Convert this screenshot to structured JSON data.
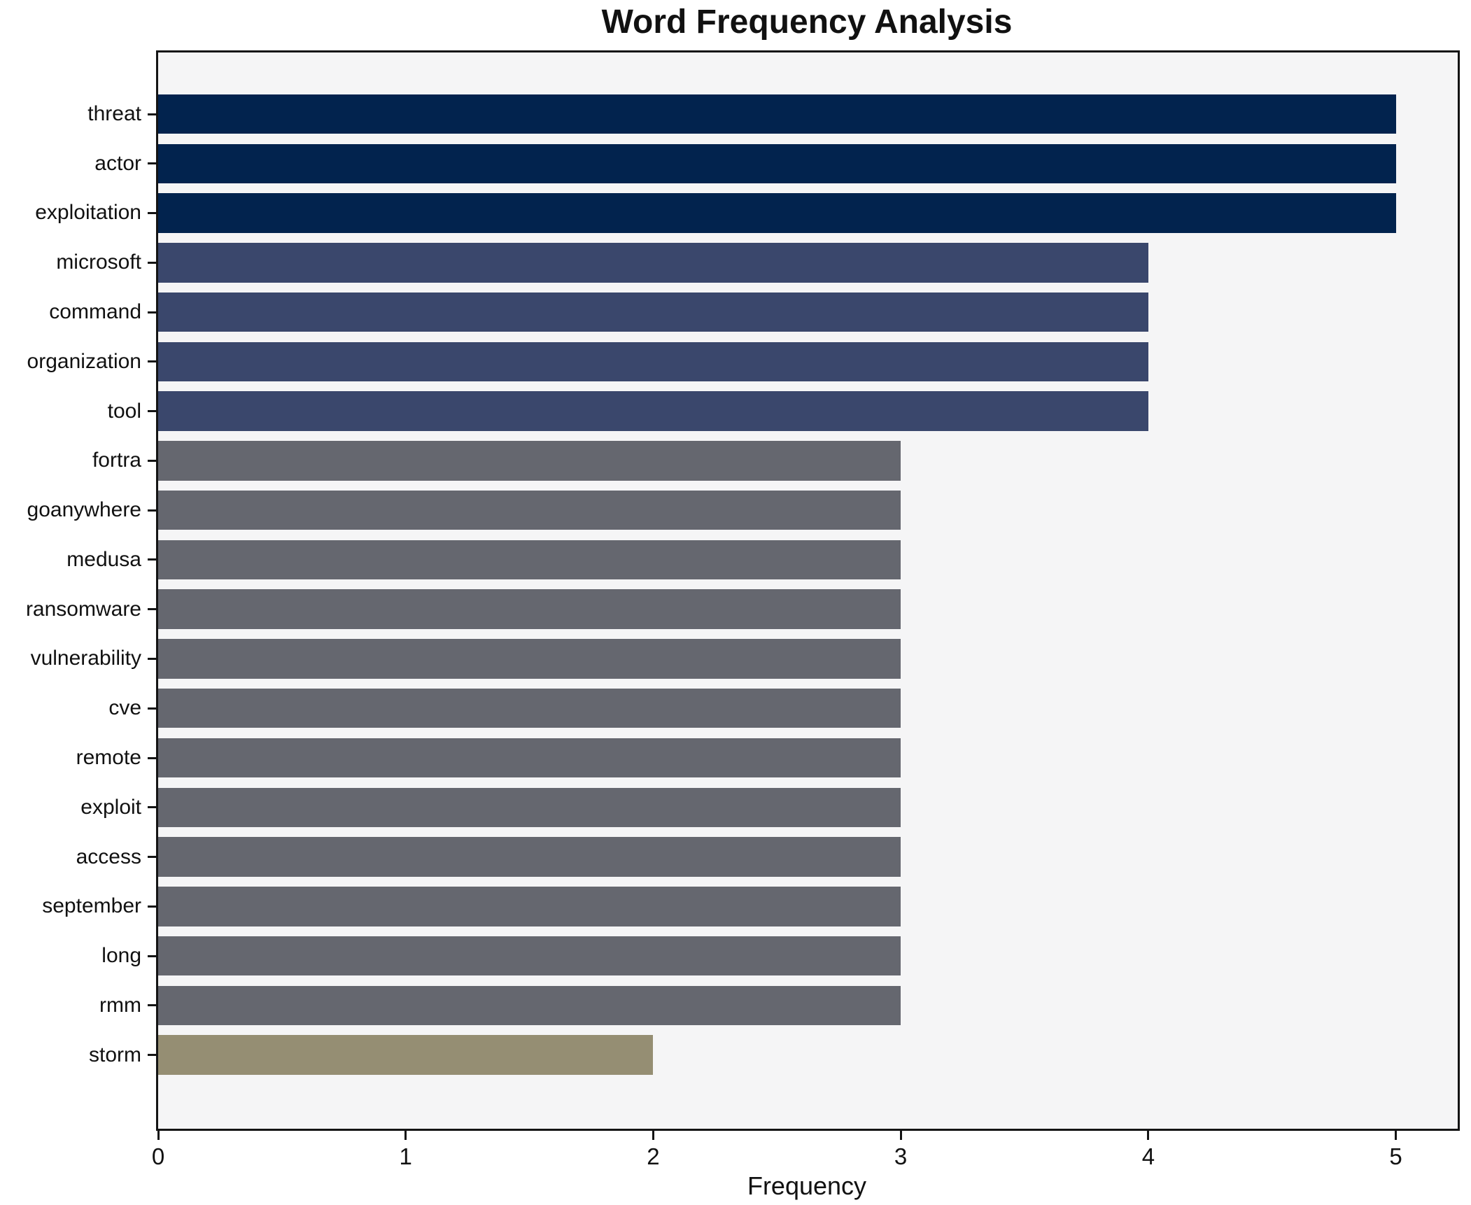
{
  "chart_data": {
    "type": "bar",
    "orientation": "horizontal",
    "title": "Word Frequency Analysis",
    "xlabel": "Frequency",
    "ylabel": "",
    "categories": [
      "threat",
      "actor",
      "exploitation",
      "microsoft",
      "command",
      "organization",
      "tool",
      "fortra",
      "goanywhere",
      "medusa",
      "ransomware",
      "vulnerability",
      "cve",
      "remote",
      "exploit",
      "access",
      "september",
      "long",
      "rmm",
      "storm"
    ],
    "values": [
      5,
      5,
      5,
      4,
      4,
      4,
      4,
      3,
      3,
      3,
      3,
      3,
      3,
      3,
      3,
      3,
      3,
      3,
      3,
      2
    ],
    "bar_colors": [
      "#02234e",
      "#02234e",
      "#02234e",
      "#3a476c",
      "#3a476c",
      "#3a476c",
      "#3a476c",
      "#65676f",
      "#65676f",
      "#65676f",
      "#65676f",
      "#65676f",
      "#65676f",
      "#65676f",
      "#65676f",
      "#65676f",
      "#65676f",
      "#65676f",
      "#65676f",
      "#958e73"
    ],
    "value_color_map": {
      "5": "#02234e",
      "4": "#3a476c",
      "3": "#65676f",
      "2": "#958e73"
    },
    "x_ticks": [
      0,
      1,
      2,
      3,
      4,
      5
    ],
    "xlim": [
      0,
      5.25
    ],
    "grid": false,
    "legend": null,
    "plot_background": "#f5f5f6",
    "axis_color": "#141414"
  }
}
